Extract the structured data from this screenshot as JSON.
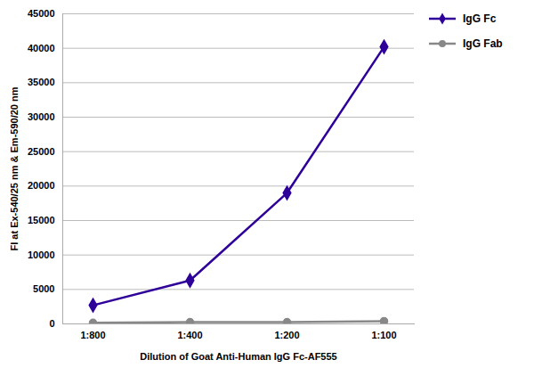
{
  "chart_data": {
    "type": "line",
    "xlabel": "Dilution of Goat Anti-Human IgG Fc-AF555",
    "ylabel": "FI at Ex-540/25 nm & Em-590/20 nm",
    "categories": [
      "1:800",
      "1:400",
      "1:200",
      "1:100"
    ],
    "series": [
      {
        "name": "IgG Fc",
        "color": "#2E0099",
        "marker": "diamond",
        "values": [
          2700,
          6300,
          19000,
          40200
        ]
      },
      {
        "name": "IgG Fab",
        "color": "#888888",
        "marker": "circle",
        "values": [
          150,
          250,
          250,
          400
        ]
      }
    ],
    "ylim": [
      0,
      45000
    ],
    "yticks": [
      0,
      5000,
      10000,
      15000,
      20000,
      25000,
      30000,
      35000,
      40000,
      45000
    ],
    "grid": true,
    "legend": "right"
  }
}
